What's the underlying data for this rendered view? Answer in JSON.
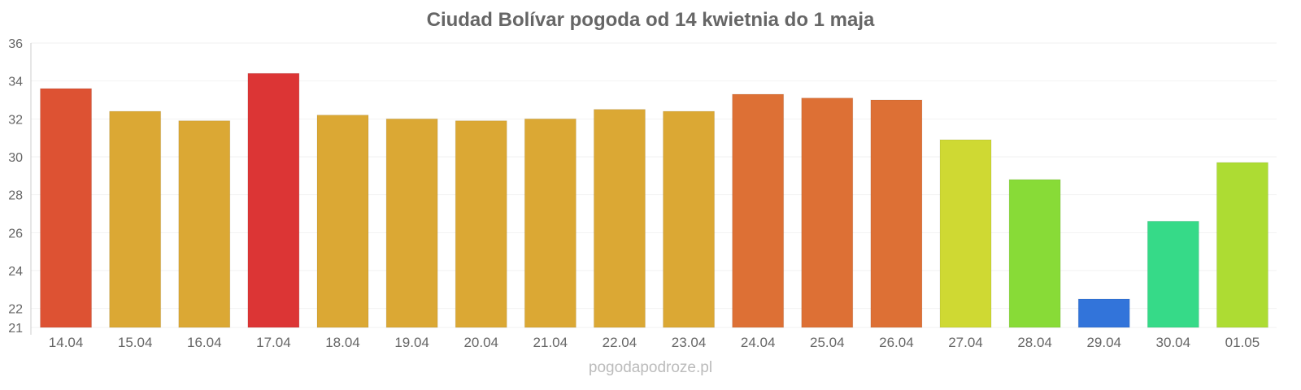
{
  "chart_data": {
    "type": "bar",
    "title": "Ciudad Bolívar pogoda od 14 kwietnia do 1 maja",
    "xlabel": "",
    "ylabel": "",
    "ylim": [
      21,
      36
    ],
    "yticks": [
      "21",
      "22",
      "24",
      "26",
      "28",
      "30",
      "32",
      "34",
      "36"
    ],
    "grid": true,
    "categories": [
      "14.04",
      "15.04",
      "16.04",
      "17.04",
      "18.04",
      "19.04",
      "20.04",
      "21.04",
      "22.04",
      "23.04",
      "24.04",
      "25.04",
      "26.04",
      "27.04",
      "28.04",
      "29.04",
      "30.04",
      "01.05"
    ],
    "values": [
      33.6,
      32.4,
      31.9,
      34.4,
      32.2,
      32.0,
      31.9,
      32.0,
      32.5,
      32.4,
      33.3,
      33.1,
      33.0,
      30.9,
      28.8,
      22.5,
      26.6,
      29.7
    ],
    "colors": [
      "#dd5233",
      "#dba834",
      "#dba834",
      "#dc3535",
      "#dba834",
      "#dba834",
      "#dba834",
      "#dba834",
      "#dba834",
      "#dba834",
      "#dd7035",
      "#dd7035",
      "#dd7035",
      "#cfd933",
      "#88db37",
      "#3274da",
      "#36da88",
      "#addc33"
    ]
  },
  "footer": "pogodapodroze.pl"
}
